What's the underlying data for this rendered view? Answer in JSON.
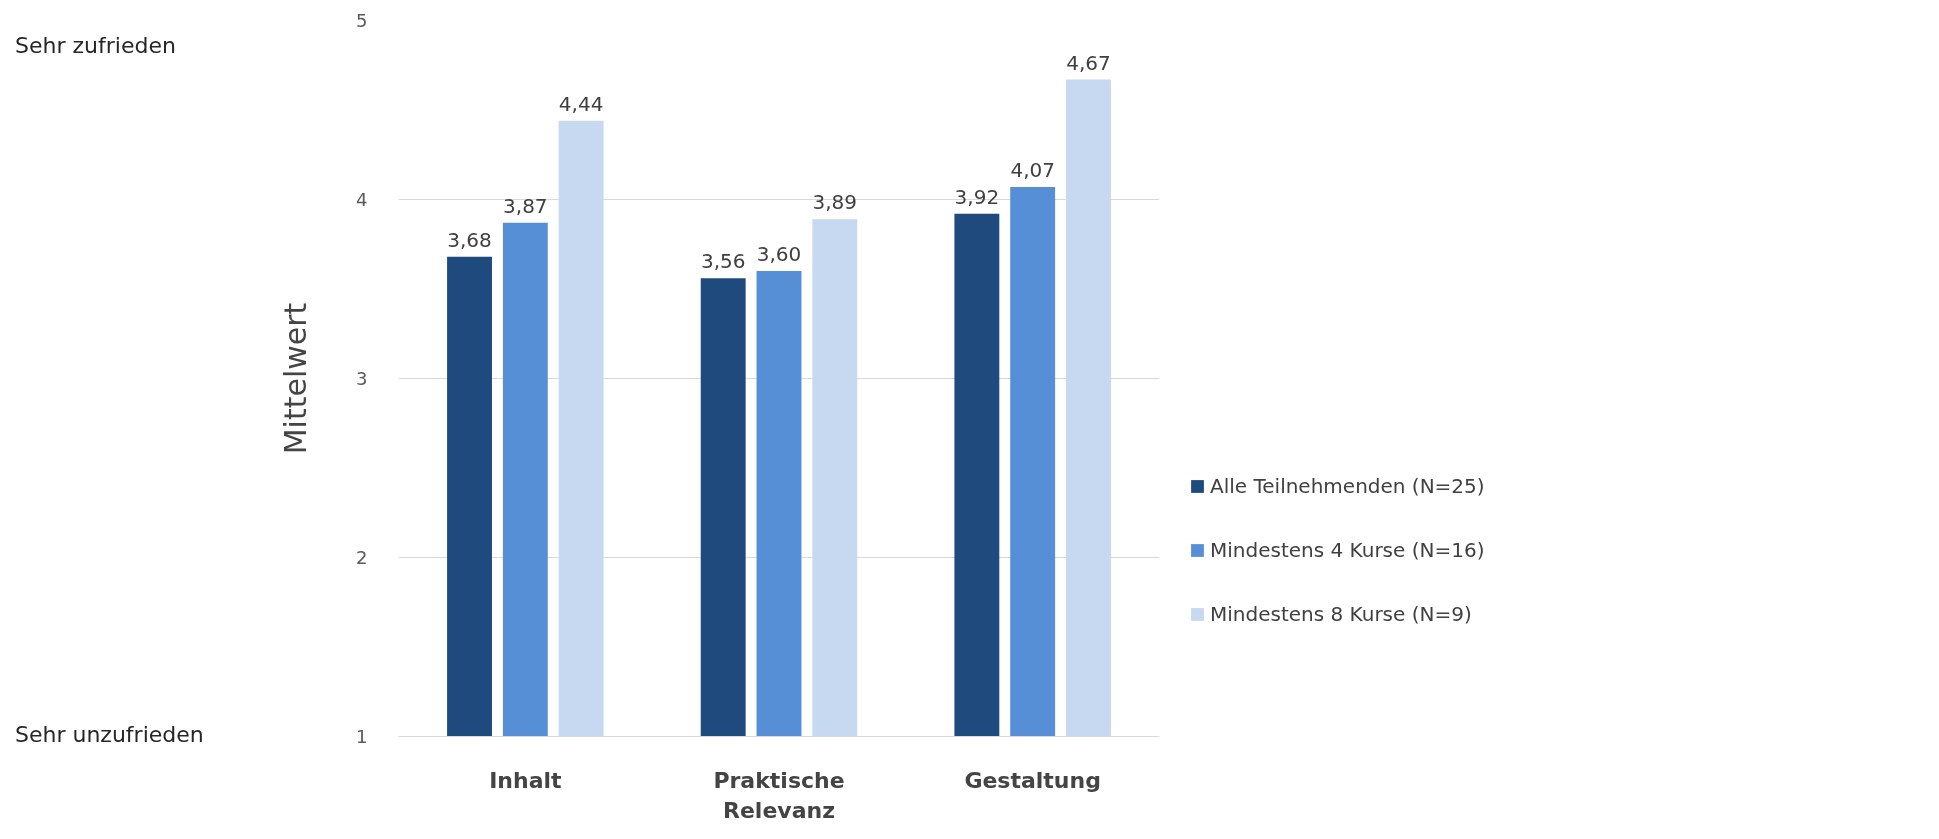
{
  "chart_data": {
    "type": "bar",
    "categories": [
      "Inhalt",
      "Praktische Relevanz",
      "Gestaltung"
    ],
    "ylabel": "Mittelwert",
    "series": [
      {
        "name": "Alle Teilnehmenden (N=25)",
        "color": "#1f4a7e",
        "values": [
          3.68,
          3.56,
          3.92
        ],
        "value_labels": [
          "3,68",
          "3,56",
          "3,92"
        ]
      },
      {
        "name": "Mindestens 4 Kurse (N=16)",
        "color": "#568fd6",
        "values": [
          3.87,
          3.6,
          4.07
        ],
        "value_labels": [
          "3,87",
          "3,60",
          "4,07"
        ]
      },
      {
        "name": "Mindestens 8 Kurse (N=9)",
        "color": "#c6d9f0",
        "values": [
          4.44,
          3.89,
          4.67
        ],
        "value_labels": [
          "4,44",
          "3,89",
          "4,67"
        ]
      }
    ],
    "ylim": [
      1,
      5
    ],
    "yticks": [
      1,
      2,
      3,
      4,
      5
    ],
    "grid": "y",
    "legend": "right",
    "annotations": [
      "Sehr zufrieden",
      "Sehr unzufrieden"
    ]
  }
}
